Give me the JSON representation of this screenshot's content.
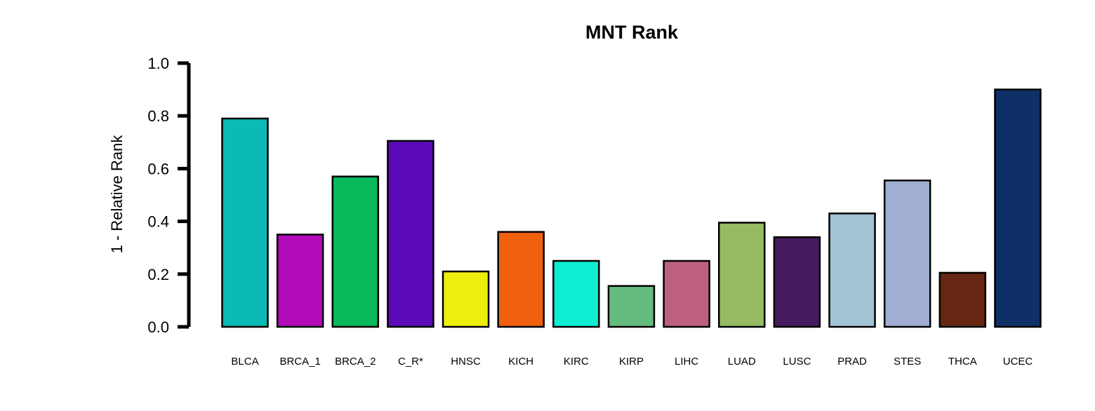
{
  "chart_data": {
    "type": "bar",
    "title": "MNT Rank",
    "ylabel": "1 - Relative Rank",
    "xlabel": "",
    "ylim": [
      0,
      1.0
    ],
    "yticks": [
      "0.0",
      "0.2",
      "0.4",
      "0.6",
      "0.8",
      "1.0"
    ],
    "categories": [
      "BLCA",
      "BRCA_1",
      "BRCA_2",
      "C_R*",
      "HNSC",
      "KICH",
      "KIRC",
      "KIRP",
      "LIHC",
      "LUAD",
      "LUSC",
      "PRAD",
      "STES",
      "THCA",
      "UCEC"
    ],
    "values": [
      0.79,
      0.35,
      0.57,
      0.705,
      0.21,
      0.36,
      0.25,
      0.155,
      0.25,
      0.395,
      0.34,
      0.43,
      0.555,
      0.205,
      0.9
    ],
    "colors": [
      "#0BBAB4",
      "#B20CBB",
      "#09B85A",
      "#5B0ABA",
      "#EEEE0D",
      "#F0600E",
      "#0FEED3",
      "#63BB7E",
      "#BD607F",
      "#96BB63",
      "#461C5F",
      "#A0C4D3",
      "#A0AED3",
      "#662612",
      "#0F3067"
    ],
    "grid": false,
    "legend": "none"
  }
}
